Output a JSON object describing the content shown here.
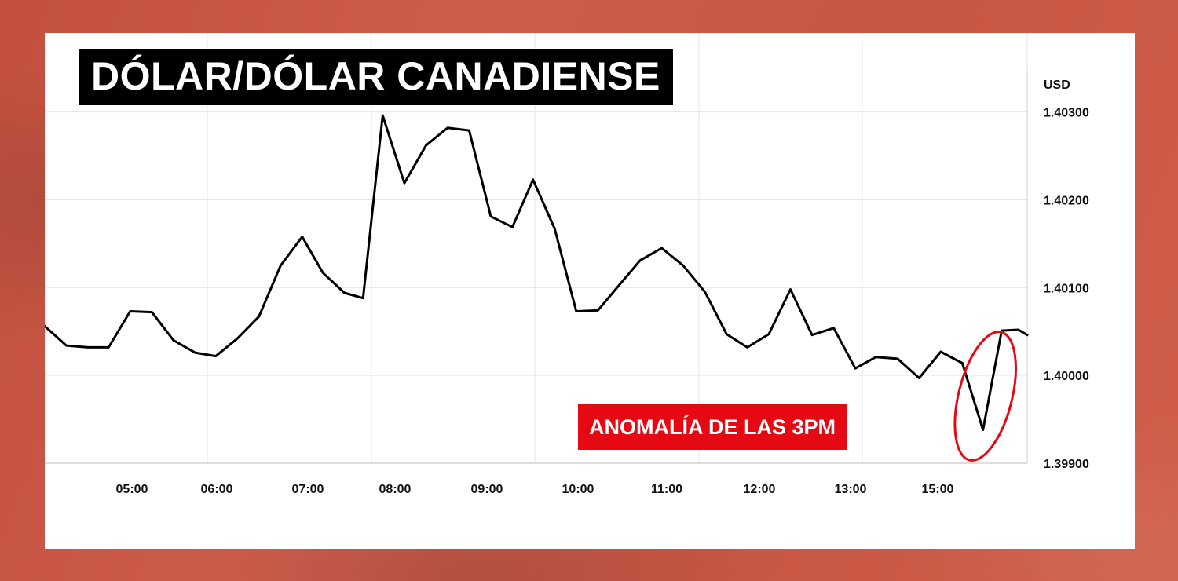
{
  "chart_data": {
    "type": "line",
    "title": "DÓLAR/DÓLAR CANADIENSE",
    "y_unit": "USD",
    "ylabel": "",
    "xlabel": "",
    "ylim": [
      1.399,
      1.4039
    ],
    "y_ticks": [
      "1.40300",
      "1.40200",
      "1.40100",
      "1.40000",
      "1.39900"
    ],
    "y_tick_values": [
      1.403,
      1.402,
      1.401,
      1.4,
      1.399
    ],
    "x_ticks": [
      "05:00",
      "06:00",
      "07:00",
      "08:00",
      "09:00",
      "10:00",
      "11:00",
      "12:00",
      "13:00",
      "15:00"
    ],
    "grid": true,
    "annotation": "ANOMALÍA DE LAS 3PM",
    "colors": {
      "line": "#000000",
      "annotation": "#e50914",
      "grid": "#e6e6e6"
    },
    "series": [
      {
        "points": [
          [
            0.0,
            1.40056
          ],
          [
            0.022,
            1.40034
          ],
          [
            0.044,
            1.40032
          ],
          [
            0.065,
            1.40032
          ],
          [
            0.087,
            1.40073
          ],
          [
            0.109,
            1.40072
          ],
          [
            0.131,
            1.4004
          ],
          [
            0.153,
            1.40026
          ],
          [
            0.174,
            1.40022
          ],
          [
            0.196,
            1.40042
          ],
          [
            0.218,
            1.40067
          ],
          [
            0.24,
            1.40125
          ],
          [
            0.262,
            1.40158
          ],
          [
            0.283,
            1.40117
          ],
          [
            0.305,
            1.40094
          ],
          [
            0.324,
            1.40088
          ],
          [
            0.344,
            1.40296
          ],
          [
            0.366,
            1.40219
          ],
          [
            0.388,
            1.40262
          ],
          [
            0.41,
            1.40282
          ],
          [
            0.432,
            1.40279
          ],
          [
            0.454,
            1.40181
          ],
          [
            0.476,
            1.40169
          ],
          [
            0.497,
            1.40223
          ],
          [
            0.519,
            1.40167
          ],
          [
            0.541,
            1.40073
          ],
          [
            0.563,
            1.40074
          ],
          [
            0.584,
            1.40102
          ],
          [
            0.606,
            1.40131
          ],
          [
            0.628,
            1.40145
          ],
          [
            0.65,
            1.40125
          ],
          [
            0.672,
            1.40095
          ],
          [
            0.694,
            1.40047
          ],
          [
            0.715,
            1.40032
          ],
          [
            0.737,
            1.40047
          ],
          [
            0.759,
            1.40098
          ],
          [
            0.781,
            1.40046
          ],
          [
            0.803,
            1.40054
          ],
          [
            0.825,
            1.40008
          ],
          [
            0.846,
            1.40021
          ],
          [
            0.868,
            1.40019
          ],
          [
            0.89,
            1.39997
          ],
          [
            0.912,
            1.40027
          ],
          [
            0.934,
            1.40014
          ],
          [
            0.955,
            1.39938
          ],
          [
            0.974,
            1.40051
          ],
          [
            0.991,
            1.40052
          ],
          [
            1.0,
            1.40046
          ]
        ]
      }
    ]
  }
}
